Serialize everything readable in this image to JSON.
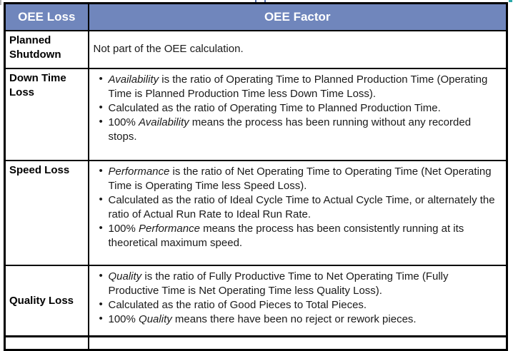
{
  "colors": {
    "header_bg": "#7086BC",
    "header_text": "#ffffff",
    "border": "#000000",
    "body_text": "#1a1a1a"
  },
  "table": {
    "header": {
      "col1": "OEE Loss",
      "col2": "OEE Factor"
    },
    "rows": [
      {
        "loss": "Planned Shutdown",
        "factor_text": "Not part of the OEE calculation.",
        "bullets": []
      },
      {
        "loss": "Down Time Loss",
        "bullets": [
          [
            {
              "text": "Availability",
              "italic": true
            },
            {
              "text": " is the ratio of Operating Time to Planned Production Time (Operating Time is Planned Production Time less Down Time Loss)."
            }
          ],
          [
            {
              "text": "Calculated as the ratio of Operating Time to Planned Production Time."
            }
          ],
          [
            {
              "text": "100% "
            },
            {
              "text": "Availability",
              "italic": true
            },
            {
              "text": " means the process has been running without any recorded stops."
            }
          ]
        ]
      },
      {
        "loss": "Speed Loss",
        "bullets": [
          [
            {
              "text": "Performance",
              "italic": true
            },
            {
              "text": " is the ratio of Net Operating Time to Operating Time (Net Operating Time is Operating Time less Speed Loss)."
            }
          ],
          [
            {
              "text": "Calculated as the ratio of Ideal Cycle Time to Actual Cycle Time, or alternately the ratio of Actual Run Rate to Ideal Run Rate."
            }
          ],
          [
            {
              "text": "100% "
            },
            {
              "text": "Performance",
              "italic": true
            },
            {
              "text": " means the process has been consistently running at its theoretical maximum speed."
            }
          ]
        ]
      },
      {
        "loss": "Quality Loss",
        "bullets": [
          [
            {
              "text": "Quality",
              "italic": true
            },
            {
              "text": " is the ratio of Fully Productive Time to Net Operating Time (Fully Productive Time is Net Operating Time less Quality Loss)."
            }
          ],
          [
            {
              "text": "Calculated as the ratio of Good Pieces to Total Pieces."
            }
          ],
          [
            {
              "text": "100% "
            },
            {
              "text": "Quality",
              "italic": true
            },
            {
              "text": " means there have been no reject or rework pieces."
            }
          ]
        ]
      }
    ]
  }
}
